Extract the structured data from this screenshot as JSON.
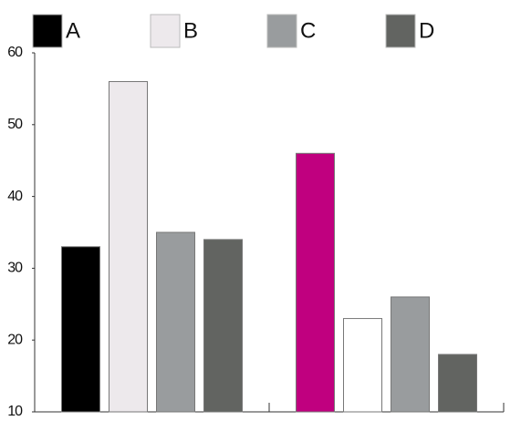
{
  "chart_data": {
    "type": "bar",
    "categories": [
      null,
      null
    ],
    "series": [
      {
        "name": "A",
        "color": "#000000",
        "point_colors": [
          "#000000",
          "#c0007f"
        ],
        "values": [
          33,
          46
        ]
      },
      {
        "name": "B",
        "color": "#ede9ec",
        "point_colors": [
          "#ede9ec",
          "#ffffff"
        ],
        "values": [
          56,
          23
        ]
      },
      {
        "name": "C",
        "color": "#999c9e",
        "point_colors": [
          "#999c9e",
          "#999c9e"
        ],
        "values": [
          35,
          26
        ]
      },
      {
        "name": "D",
        "color": "#626461",
        "point_colors": [
          "#626461",
          "#626461"
        ],
        "values": [
          34,
          18
        ]
      }
    ],
    "ylim": [
      10,
      60
    ],
    "yticks": [
      10,
      20,
      30,
      40,
      50,
      60
    ],
    "grid": false
  }
}
